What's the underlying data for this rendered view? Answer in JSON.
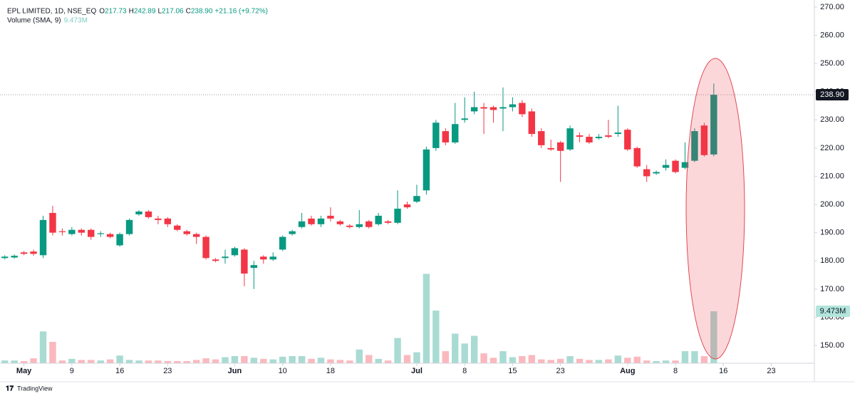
{
  "chart_data": {
    "type": "candlestick",
    "legend": {
      "symbol": "EPL LIMITED, 1D, NSE_EQ",
      "ohlc": [
        {
          "key": "O",
          "value": "217.73"
        },
        {
          "key": "H",
          "value": "242.89"
        },
        {
          "key": "L",
          "value": "217.06"
        },
        {
          "key": "C",
          "value": "238.90"
        }
      ],
      "change": "+21.16 (+9.72%)",
      "volume_name": "Volume (SMA, 9)",
      "volume_value": "9.473M"
    },
    "branding": "TradingView",
    "up_color": "#089981",
    "down_color": "#f23645",
    "open": [
      181,
      181.2,
      183,
      183.3,
      182,
      197,
      190.5,
      189.5,
      191,
      191,
      189.5,
      189.5,
      185.5,
      189.5,
      196.5,
      197.5,
      195,
      195,
      192.5,
      190.5,
      189.5,
      188.5,
      180.5,
      181,
      182,
      184,
      177.5,
      181.5,
      180.5,
      184,
      189.5,
      192,
      195,
      193,
      196,
      194,
      192.5,
      192,
      194,
      193,
      194,
      193.5,
      200,
      201,
      205,
      220,
      226,
      222,
      230,
      233,
      234.5,
      234.5,
      234,
      234.5,
      236,
      233,
      226,
      220,
      222,
      219.5,
      224.5,
      224,
      223.5,
      224.5,
      225,
      226.5,
      220,
      212.5,
      211,
      213,
      215.5,
      213,
      215.5,
      228,
      217.73
    ],
    "high": [
      182,
      182.3,
      183.5,
      184,
      196,
      199.5,
      191.5,
      192,
      191.5,
      191.5,
      190.5,
      190,
      190,
      195,
      198,
      198,
      196,
      195.5,
      193,
      191,
      190,
      189,
      181,
      184,
      185,
      184.5,
      180,
      182,
      183,
      189,
      191,
      197,
      196,
      196,
      199,
      194.5,
      193,
      198,
      194.5,
      197,
      194.5,
      205,
      201,
      207,
      220.5,
      230,
      227,
      236,
      238,
      240,
      236,
      235,
      241.5,
      238,
      237,
      234,
      227,
      223,
      222.5,
      228,
      225.5,
      225,
      225,
      230,
      235,
      227,
      220.5,
      214,
      212,
      216,
      216,
      222,
      227,
      229,
      242.89
    ],
    "low": [
      180.5,
      180.8,
      182,
      181.8,
      181,
      189,
      189,
      189,
      189,
      187.5,
      188.5,
      188,
      185,
      189,
      196,
      195,
      193,
      192,
      190.5,
      189,
      186,
      180.5,
      179.5,
      179,
      181.5,
      171,
      170,
      179,
      180,
      183.5,
      189,
      191.5,
      192.5,
      192,
      194,
      192.5,
      191.5,
      191.5,
      191.5,
      192.5,
      193,
      193,
      198.5,
      200.5,
      203.5,
      219,
      221,
      221.5,
      229,
      232,
      225,
      229,
      226,
      233,
      231,
      224,
      220,
      219,
      208,
      219,
      222,
      221.5,
      223,
      223.5,
      224,
      219,
      213,
      208,
      210.5,
      212,
      211,
      212.5,
      215,
      217,
      217.06
    ],
    "close": [
      181.5,
      181.8,
      182.5,
      182.5,
      194.5,
      190,
      190.2,
      191,
      190,
      188.5,
      189.8,
      188.5,
      189.5,
      194.5,
      197.5,
      195.5,
      194.5,
      193,
      191,
      189.5,
      188.5,
      181,
      180,
      181.5,
      184.5,
      175.5,
      178.5,
      180.5,
      181.5,
      188.5,
      190.5,
      194,
      193,
      195,
      195,
      193,
      192,
      193,
      192,
      196,
      193.5,
      198.5,
      199,
      203,
      219.5,
      229,
      222,
      228.5,
      230.5,
      234.5,
      234,
      233.5,
      234.5,
      235.5,
      232,
      225,
      221,
      219.5,
      219,
      227,
      224,
      222,
      224,
      224,
      225.5,
      219.5,
      213.5,
      210,
      211.5,
      214,
      211.5,
      215,
      226,
      217.5,
      238.9
    ],
    "volumes": [
      0.5,
      0.5,
      0.4,
      0.9,
      5.8,
      3.9,
      0.5,
      0.8,
      0.6,
      0.6,
      0.5,
      0.7,
      1.4,
      0.6,
      0.5,
      0.5,
      0.5,
      0.4,
      0.4,
      0.4,
      0.6,
      0.9,
      0.7,
      1.1,
      1.3,
      1.3,
      1.0,
      0.8,
      0.7,
      1.2,
      1.3,
      1.3,
      0.8,
      1.0,
      0.7,
      0.6,
      0.5,
      2.5,
      1.5,
      0.8,
      0.5,
      4.6,
      1.5,
      2.0,
      16.3,
      9.6,
      2.2,
      5.4,
      3.6,
      5.0,
      1.8,
      1.0,
      2.2,
      1.1,
      1.3,
      1.5,
      0.7,
      0.6,
      0.8,
      1.3,
      0.8,
      0.6,
      0.6,
      0.7,
      1.4,
      1.0,
      1.2,
      0.5,
      0.4,
      0.5,
      0.5,
      2.2,
      2.2,
      1.3,
      9.473
    ],
    "last_price": {
      "value": 238.9,
      "label": "238.90"
    },
    "last_volume_label": "9.473M",
    "xlim": [
      -0.5,
      84.5
    ],
    "xticks": [
      {
        "value": 2,
        "label": "May"
      },
      {
        "value": 7,
        "label": "9"
      },
      {
        "value": 12,
        "label": "16"
      },
      {
        "value": 17,
        "label": "23"
      },
      {
        "value": 24,
        "label": "Jun"
      },
      {
        "value": 29,
        "label": "10"
      },
      {
        "value": 34,
        "label": "18"
      },
      {
        "value": 43,
        "label": "Jul"
      },
      {
        "value": 48,
        "label": "8"
      },
      {
        "value": 53,
        "label": "15"
      },
      {
        "value": 58,
        "label": "23"
      },
      {
        "value": 65,
        "label": "Aug"
      },
      {
        "value": 70,
        "label": "8"
      },
      {
        "value": 75,
        "label": "16"
      },
      {
        "value": 80,
        "label": "23"
      }
    ],
    "ylim": [
      143.7,
      272.5
    ],
    "yticks": [
      {
        "value": 150,
        "label": "150.00"
      },
      {
        "value": 160,
        "label": "160.00"
      },
      {
        "value": 170,
        "label": "170.00"
      },
      {
        "value": 180,
        "label": "180.00"
      },
      {
        "value": 190,
        "label": "190.00"
      },
      {
        "value": 200,
        "label": "200.00"
      },
      {
        "value": 210,
        "label": "210.00"
      },
      {
        "value": 220,
        "label": "220.00"
      },
      {
        "value": 230,
        "label": "230.00"
      },
      {
        "value": 240,
        "label": "240.00"
      },
      {
        "value": 250,
        "label": "250.00"
      },
      {
        "value": 260,
        "label": "260.00"
      },
      {
        "value": 270,
        "label": "270.00"
      }
    ],
    "grid": false
  }
}
